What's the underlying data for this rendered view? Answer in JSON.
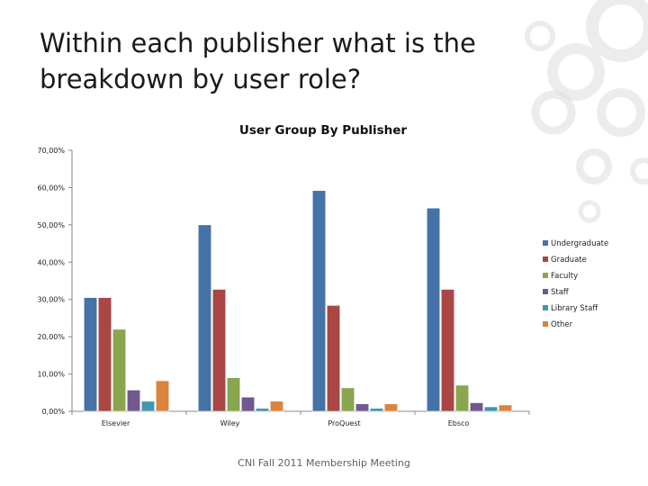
{
  "slide": {
    "title": "Within each publisher what is the breakdown by user role?",
    "footer": "CNI Fall 2011 Membership Meeting"
  },
  "colors": {
    "Undergraduate": "#4572A7",
    "Graduate": "#AA4643",
    "Faculty": "#89A54E",
    "Staff": "#71588F",
    "Library Staff": "#4198AF",
    "Other": "#DB843D",
    "decor_circles": "#dcdcdc"
  },
  "chart_data": {
    "type": "bar",
    "title": "User Group By Publisher",
    "xlabel": "",
    "ylabel": "",
    "ylim": [
      0,
      70
    ],
    "y_ticks": [
      "0,00%",
      "10,00%",
      "20,00%",
      "30,00%",
      "40,00%",
      "50,00%",
      "60,00%",
      "70,00%"
    ],
    "y_unit": "percent",
    "categories": [
      "Elsevier",
      "Wiley",
      "ProQuest",
      "Ebsco"
    ],
    "series": [
      {
        "name": "Undergraduate",
        "values": [
          30.5,
          50.0,
          59.2,
          54.5
        ]
      },
      {
        "name": "Graduate",
        "values": [
          30.5,
          32.7,
          28.4,
          32.7
        ]
      },
      {
        "name": "Faculty",
        "values": [
          22.0,
          9.0,
          6.3,
          7.0
        ]
      },
      {
        "name": "Staff",
        "values": [
          5.7,
          3.8,
          2.0,
          2.3
        ]
      },
      {
        "name": "Library Staff",
        "values": [
          2.7,
          0.8,
          0.8,
          1.2
        ]
      },
      {
        "name": "Other",
        "values": [
          8.2,
          2.7,
          2.0,
          1.7
        ]
      }
    ],
    "grid": false,
    "legend_position": "right"
  }
}
